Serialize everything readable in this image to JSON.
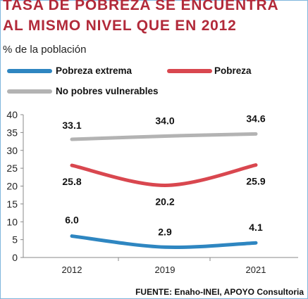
{
  "title_line1": "TASA DE POBREZA SE ENCUENTRA",
  "title_line2": "AL MISMO NIVEL QUE EN 2012",
  "subtitle": "% de la población",
  "source": "FUENTE: Enaho-INEI, APOYO Consultoria",
  "chart_data": {
    "type": "line",
    "x": [
      "2012",
      "2019",
      "2021"
    ],
    "ylim": [
      0,
      40
    ],
    "yticks": [
      0,
      5,
      10,
      15,
      20,
      25,
      30,
      35,
      40
    ],
    "legend_placement": "top-left",
    "grid": false,
    "series": [
      {
        "name": "Pobreza extrema",
        "values": [
          6.0,
          2.9,
          4.1
        ],
        "labels": [
          "6.0",
          "2.9",
          "4.1"
        ],
        "color": "#2e86c1"
      },
      {
        "name": "Pobreza",
        "values": [
          25.8,
          20.2,
          25.9
        ],
        "labels": [
          "25.8",
          "20.2",
          "25.9"
        ],
        "color": "#d9474f"
      },
      {
        "name": "No pobres vulnerables",
        "values": [
          33.1,
          34.0,
          34.6
        ],
        "labels": [
          "33.1",
          "34.0",
          "34.6"
        ],
        "color": "#b3b3b3"
      }
    ]
  }
}
